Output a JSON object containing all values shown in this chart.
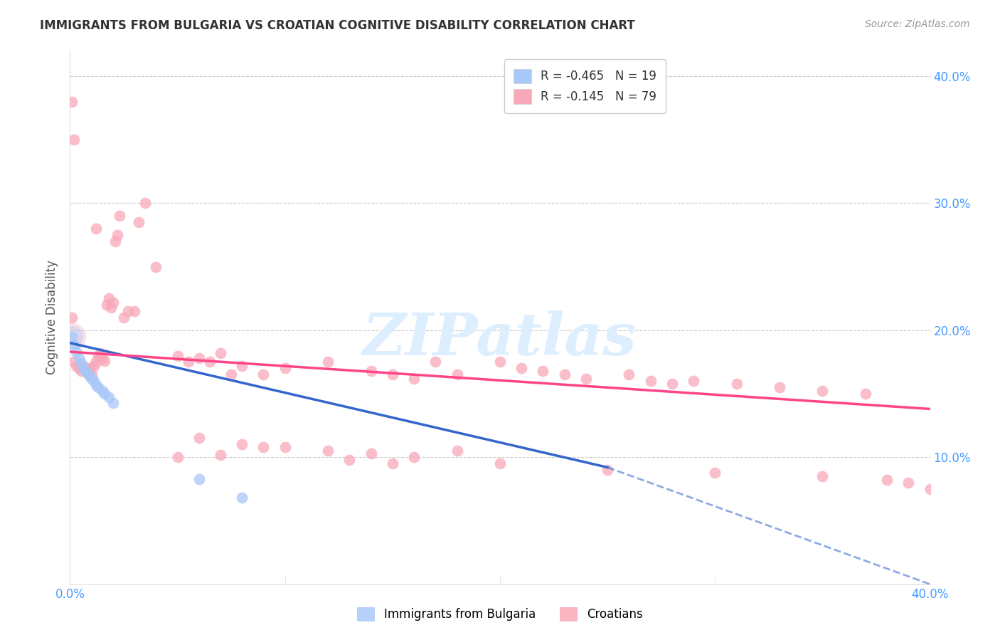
{
  "title": "IMMIGRANTS FROM BULGARIA VS CROATIAN COGNITIVE DISABILITY CORRELATION CHART",
  "source": "Source: ZipAtlas.com",
  "ylabel": "Cognitive Disability",
  "xlim": [
    0.0,
    0.4
  ],
  "ylim": [
    0.0,
    0.42
  ],
  "yticks": [
    0.1,
    0.2,
    0.3,
    0.4
  ],
  "ytick_labels": [
    "10.0%",
    "20.0%",
    "30.0%",
    "40.0%"
  ],
  "xtick_left": "0.0%",
  "xtick_right": "40.0%",
  "legend_r1": "R = -0.465",
  "legend_n1": "N = 19",
  "legend_r2": "R = -0.145",
  "legend_n2": "N = 79",
  "color_bulgaria": "#a8c8f8",
  "color_croatia": "#f8a8b8",
  "color_trend_bulgaria": "#3366cc",
  "color_trend_croatia": "#ff4488",
  "color_grid": "#cccccc",
  "color_text": "#333333",
  "color_source": "#999999",
  "color_axis_labels": "#4499ff",
  "watermark_text": "ZIPatlas",
  "watermark_color": "#ddeeff",
  "legend_label1": "Immigrants from Bulgaria",
  "legend_label2": "Croatians",
  "bg_x": [
    0.001,
    0.002,
    0.003,
    0.004,
    0.005,
    0.006,
    0.007,
    0.008,
    0.009,
    0.01,
    0.011,
    0.012,
    0.013,
    0.015,
    0.016,
    0.018,
    0.02,
    0.06,
    0.08
  ],
  "bg_y": [
    0.195,
    0.188,
    0.183,
    0.178,
    0.174,
    0.17,
    0.168,
    0.166,
    0.164,
    0.162,
    0.16,
    0.157,
    0.155,
    0.152,
    0.15,
    0.147,
    0.143,
    0.083,
    0.068
  ],
  "cr_x": [
    0.001,
    0.001,
    0.002,
    0.002,
    0.003,
    0.004,
    0.005,
    0.006,
    0.007,
    0.008,
    0.009,
    0.01,
    0.011,
    0.012,
    0.012,
    0.013,
    0.014,
    0.015,
    0.016,
    0.017,
    0.018,
    0.019,
    0.02,
    0.021,
    0.022,
    0.023,
    0.025,
    0.027,
    0.03,
    0.032,
    0.035,
    0.04,
    0.05,
    0.055,
    0.06,
    0.065,
    0.07,
    0.075,
    0.08,
    0.09,
    0.1,
    0.12,
    0.14,
    0.15,
    0.16,
    0.17,
    0.18,
    0.2,
    0.21,
    0.22,
    0.23,
    0.24,
    0.26,
    0.27,
    0.28,
    0.29,
    0.31,
    0.33,
    0.35,
    0.37,
    0.06,
    0.08,
    0.1,
    0.12,
    0.14,
    0.16,
    0.18,
    0.05,
    0.07,
    0.09,
    0.13,
    0.15,
    0.2,
    0.25,
    0.3,
    0.35,
    0.38,
    0.39,
    0.4
  ],
  "cr_y": [
    0.21,
    0.38,
    0.175,
    0.35,
    0.172,
    0.17,
    0.168,
    0.172,
    0.17,
    0.166,
    0.17,
    0.165,
    0.172,
    0.175,
    0.28,
    0.18,
    0.182,
    0.178,
    0.176,
    0.22,
    0.225,
    0.218,
    0.222,
    0.27,
    0.275,
    0.29,
    0.21,
    0.215,
    0.215,
    0.285,
    0.3,
    0.25,
    0.18,
    0.175,
    0.178,
    0.175,
    0.182,
    0.165,
    0.172,
    0.165,
    0.17,
    0.175,
    0.168,
    0.165,
    0.162,
    0.175,
    0.165,
    0.175,
    0.17,
    0.168,
    0.165,
    0.162,
    0.165,
    0.16,
    0.158,
    0.16,
    0.158,
    0.155,
    0.152,
    0.15,
    0.115,
    0.11,
    0.108,
    0.105,
    0.103,
    0.1,
    0.105,
    0.1,
    0.102,
    0.108,
    0.098,
    0.095,
    0.095,
    0.09,
    0.088,
    0.085,
    0.082,
    0.08,
    0.075
  ],
  "trend_bg_x0": 0.0,
  "trend_bg_x1": 0.25,
  "trend_bg_dash_x0": 0.25,
  "trend_bg_dash_x1": 0.4,
  "trend_bg_y0": 0.19,
  "trend_bg_y1": 0.092,
  "trend_bg_dash_y0": 0.092,
  "trend_bg_dash_y1": 0.0,
  "trend_cr_x0": 0.0,
  "trend_cr_x1": 0.4,
  "trend_cr_y0": 0.183,
  "trend_cr_y1": 0.138
}
